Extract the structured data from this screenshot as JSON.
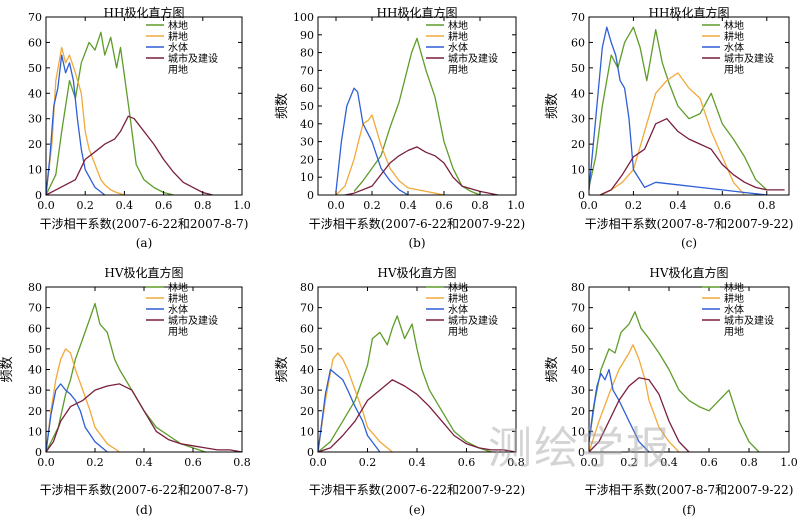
{
  "colors": {
    "forest": "#5e9c2a",
    "farmland": "#f2a93b",
    "water": "#2f5fd6",
    "urban": "#7a1f3d",
    "axis": "#000000"
  },
  "legend_labels": [
    "林地",
    "耕地",
    "水体",
    "城市及建设",
    "用地"
  ],
  "watermark": "测绘学报",
  "chart_data": [
    {
      "type": "line",
      "panel_label": "(a)",
      "title": "HH极化直方图",
      "xlabel": "干涉相干系数(2007-6-22和2007-8-7)",
      "ylabel": "",
      "xlim": [
        0,
        1.0
      ],
      "ylim": [
        0,
        70
      ],
      "xticks": [
        "0.0",
        "0.2",
        "0.4",
        "0.6",
        "0.8",
        "1.0"
      ],
      "yticks": [
        "0",
        "10",
        "20",
        "30",
        "40",
        "50",
        "60",
        "70"
      ],
      "series": [
        {
          "name": "林地",
          "color": "forest",
          "x": [
            0.0,
            0.05,
            0.08,
            0.12,
            0.15,
            0.18,
            0.2,
            0.22,
            0.25,
            0.28,
            0.3,
            0.33,
            0.36,
            0.38,
            0.4,
            0.43,
            0.46,
            0.5,
            0.55,
            0.6,
            0.65
          ],
          "y": [
            0,
            8,
            25,
            45,
            38,
            52,
            56,
            60,
            57,
            64,
            55,
            62,
            50,
            58,
            47,
            30,
            12,
            6,
            3,
            1,
            0
          ]
        },
        {
          "name": "耕地",
          "color": "farmland",
          "x": [
            0.0,
            0.03,
            0.05,
            0.08,
            0.1,
            0.12,
            0.15,
            0.18,
            0.2,
            0.22,
            0.25,
            0.28,
            0.3,
            0.33,
            0.36,
            0.4
          ],
          "y": [
            0,
            20,
            45,
            58,
            52,
            55,
            48,
            40,
            25,
            18,
            12,
            6,
            4,
            2,
            1,
            0
          ]
        },
        {
          "name": "水体",
          "color": "water",
          "x": [
            0.0,
            0.02,
            0.04,
            0.06,
            0.08,
            0.1,
            0.12,
            0.14,
            0.16,
            0.18,
            0.2,
            0.25,
            0.3
          ],
          "y": [
            0,
            15,
            35,
            42,
            55,
            48,
            52,
            45,
            30,
            18,
            10,
            3,
            0
          ]
        },
        {
          "name": "城市及建设用地",
          "color": "urban",
          "x": [
            0.0,
            0.05,
            0.1,
            0.15,
            0.2,
            0.25,
            0.3,
            0.35,
            0.38,
            0.4,
            0.42,
            0.45,
            0.5,
            0.55,
            0.6,
            0.65,
            0.7,
            0.75,
            0.8,
            0.85
          ],
          "y": [
            0,
            2,
            4,
            6,
            14,
            17,
            20,
            22,
            25,
            28,
            31,
            30,
            25,
            20,
            14,
            9,
            5,
            3,
            1,
            0
          ]
        }
      ]
    },
    {
      "type": "line",
      "panel_label": "(b)",
      "title": "HH极化直方图",
      "xlabel": "干涉相干系数(2007-6-22和2007-9-22)",
      "ylabel": "频数",
      "xlim": [
        -0.1,
        1.0
      ],
      "ylim": [
        0,
        100
      ],
      "xticks": [
        "0.0",
        "0.2",
        "0.4",
        "0.6",
        "0.8",
        "1.0"
      ],
      "yticks": [
        "0",
        "10",
        "20",
        "30",
        "40",
        "50",
        "60",
        "70",
        "80",
        "90",
        "100"
      ],
      "series": [
        {
          "name": "林地",
          "color": "forest",
          "x": [
            0.1,
            0.15,
            0.2,
            0.25,
            0.3,
            0.35,
            0.4,
            0.42,
            0.45,
            0.5,
            0.55,
            0.6,
            0.65,
            0.7,
            0.75,
            0.8
          ],
          "y": [
            2,
            8,
            15,
            22,
            38,
            52,
            72,
            80,
            88,
            70,
            55,
            30,
            15,
            5,
            2,
            0
          ]
        },
        {
          "name": "耕地",
          "color": "farmland",
          "x": [
            0.0,
            0.05,
            0.1,
            0.15,
            0.18,
            0.2,
            0.25,
            0.3,
            0.35,
            0.4,
            0.5,
            0.6
          ],
          "y": [
            0,
            5,
            20,
            40,
            42,
            45,
            28,
            15,
            8,
            4,
            2,
            0
          ]
        },
        {
          "name": "水体",
          "color": "water",
          "x": [
            0.0,
            0.03,
            0.06,
            0.1,
            0.12,
            0.15,
            0.2,
            0.25,
            0.3,
            0.35,
            0.4
          ],
          "y": [
            2,
            30,
            50,
            60,
            58,
            40,
            30,
            15,
            8,
            3,
            0
          ]
        },
        {
          "name": "城市及建设用地",
          "color": "urban",
          "x": [
            0.05,
            0.1,
            0.2,
            0.3,
            0.35,
            0.4,
            0.45,
            0.5,
            0.55,
            0.6,
            0.65,
            0.7,
            0.8,
            0.9
          ],
          "y": [
            0,
            1,
            5,
            18,
            22,
            25,
            27,
            24,
            22,
            18,
            10,
            5,
            2,
            0
          ]
        }
      ]
    },
    {
      "type": "line",
      "panel_label": "(c)",
      "title": "HH极化直方图",
      "xlabel": "干涉相干系数(2007-8-7和2007-9-22)",
      "ylabel": "频数",
      "xlim": [
        0,
        0.9
      ],
      "ylim": [
        0,
        70
      ],
      "xticks": [
        "0.0",
        "0.2",
        "0.4",
        "0.6",
        "0.8"
      ],
      "yticks": [
        "0",
        "10",
        "20",
        "30",
        "40",
        "50",
        "60",
        "70"
      ],
      "series": [
        {
          "name": "林地",
          "color": "forest",
          "x": [
            0.0,
            0.03,
            0.06,
            0.1,
            0.13,
            0.16,
            0.2,
            0.23,
            0.26,
            0.3,
            0.33,
            0.36,
            0.4,
            0.45,
            0.5,
            0.55,
            0.6,
            0.65,
            0.7,
            0.75,
            0.8
          ],
          "y": [
            3,
            15,
            35,
            55,
            50,
            60,
            66,
            58,
            45,
            65,
            52,
            44,
            35,
            30,
            32,
            40,
            28,
            22,
            15,
            6,
            2
          ]
        },
        {
          "name": "耕地",
          "color": "farmland",
          "x": [
            0.05,
            0.1,
            0.15,
            0.2,
            0.25,
            0.3,
            0.35,
            0.4,
            0.45,
            0.5,
            0.55,
            0.6,
            0.65,
            0.7
          ],
          "y": [
            0,
            2,
            5,
            10,
            25,
            40,
            45,
            48,
            42,
            38,
            25,
            15,
            5,
            0
          ]
        },
        {
          "name": "水体",
          "color": "water",
          "x": [
            0.0,
            0.03,
            0.06,
            0.08,
            0.1,
            0.12,
            0.14,
            0.16,
            0.18,
            0.2,
            0.25,
            0.3,
            0.4,
            0.5,
            0.6,
            0.7,
            0.8
          ],
          "y": [
            2,
            30,
            58,
            66,
            60,
            55,
            45,
            42,
            30,
            10,
            3,
            5,
            4,
            3,
            2,
            1,
            0
          ]
        },
        {
          "name": "城市及建设用地",
          "color": "urban",
          "x": [
            0.05,
            0.1,
            0.15,
            0.2,
            0.25,
            0.3,
            0.35,
            0.4,
            0.45,
            0.5,
            0.55,
            0.6,
            0.65,
            0.7,
            0.75,
            0.8,
            0.85,
            0.88
          ],
          "y": [
            0,
            2,
            8,
            15,
            18,
            28,
            30,
            25,
            22,
            20,
            18,
            12,
            8,
            5,
            3,
            2,
            2,
            2
          ]
        }
      ]
    },
    {
      "type": "line",
      "panel_label": "(d)",
      "title": "HV极化直方图",
      "xlabel": "干涉相干系数(2007-6-22和2007-8-7)",
      "ylabel": "频数",
      "xlim": [
        0,
        0.8
      ],
      "ylim": [
        0,
        80
      ],
      "xticks": [
        "0.0",
        "0.2",
        "0.4",
        "0.6",
        "0.8"
      ],
      "yticks": [
        "0",
        "10",
        "20",
        "30",
        "40",
        "50",
        "60",
        "70",
        "80"
      ],
      "series": [
        {
          "name": "林地",
          "color": "forest",
          "x": [
            0.0,
            0.05,
            0.08,
            0.1,
            0.12,
            0.15,
            0.18,
            0.2,
            0.22,
            0.25,
            0.28,
            0.3,
            0.35,
            0.4,
            0.45,
            0.5,
            0.55,
            0.6,
            0.65
          ],
          "y": [
            0,
            12,
            28,
            35,
            45,
            55,
            65,
            72,
            62,
            58,
            45,
            40,
            30,
            20,
            12,
            8,
            4,
            2,
            0
          ]
        },
        {
          "name": "耕地",
          "color": "farmland",
          "x": [
            0.0,
            0.02,
            0.04,
            0.06,
            0.08,
            0.1,
            0.12,
            0.15,
            0.18,
            0.2,
            0.25,
            0.3
          ],
          "y": [
            0,
            20,
            35,
            45,
            50,
            48,
            40,
            30,
            20,
            12,
            4,
            0
          ]
        },
        {
          "name": "水体",
          "color": "water",
          "x": [
            0.0,
            0.02,
            0.04,
            0.06,
            0.08,
            0.1,
            0.12,
            0.14,
            0.16,
            0.2,
            0.25
          ],
          "y": [
            0,
            18,
            30,
            33,
            30,
            28,
            25,
            20,
            12,
            5,
            0
          ]
        },
        {
          "name": "城市及建设用地",
          "color": "urban",
          "x": [
            0.0,
            0.03,
            0.06,
            0.1,
            0.15,
            0.2,
            0.25,
            0.3,
            0.35,
            0.4,
            0.45,
            0.5,
            0.55,
            0.6,
            0.65,
            0.7,
            0.75,
            0.8
          ],
          "y": [
            0,
            5,
            15,
            22,
            25,
            30,
            32,
            33,
            30,
            20,
            10,
            6,
            4,
            3,
            2,
            1,
            1,
            0
          ]
        }
      ]
    },
    {
      "type": "line",
      "panel_label": "(e)",
      "title": "HV极化直方图",
      "xlabel": "干涉相干系数(2007-6-22和2007-9-22)",
      "ylabel": "频数",
      "xlim": [
        0,
        0.8
      ],
      "ylim": [
        0,
        80
      ],
      "xticks": [
        "0.0",
        "0.2",
        "0.4",
        "0.6",
        "0.8"
      ],
      "yticks": [
        "0",
        "10",
        "20",
        "30",
        "40",
        "50",
        "60",
        "70",
        "80"
      ],
      "series": [
        {
          "name": "林地",
          "color": "forest",
          "x": [
            0.0,
            0.05,
            0.1,
            0.15,
            0.2,
            0.22,
            0.25,
            0.28,
            0.3,
            0.32,
            0.35,
            0.38,
            0.4,
            0.42,
            0.45,
            0.5,
            0.55,
            0.6,
            0.65,
            0.7
          ],
          "y": [
            0,
            5,
            15,
            25,
            42,
            55,
            58,
            52,
            60,
            66,
            55,
            62,
            50,
            40,
            30,
            20,
            10,
            5,
            2,
            0
          ]
        },
        {
          "name": "耕地",
          "color": "farmland",
          "x": [
            0.0,
            0.03,
            0.06,
            0.08,
            0.1,
            0.12,
            0.15,
            0.18,
            0.2,
            0.25,
            0.3
          ],
          "y": [
            0,
            25,
            45,
            48,
            45,
            40,
            30,
            20,
            12,
            5,
            0
          ]
        },
        {
          "name": "水体",
          "color": "water",
          "x": [
            0.0,
            0.03,
            0.05,
            0.07,
            0.1,
            0.12,
            0.15,
            0.18,
            0.2,
            0.25
          ],
          "y": [
            0,
            28,
            40,
            38,
            35,
            30,
            22,
            15,
            8,
            0
          ]
        },
        {
          "name": "城市及建设用地",
          "color": "urban",
          "x": [
            0.0,
            0.05,
            0.1,
            0.15,
            0.2,
            0.25,
            0.3,
            0.35,
            0.4,
            0.45,
            0.5,
            0.55,
            0.6,
            0.65,
            0.7,
            0.75,
            0.8
          ],
          "y": [
            0,
            2,
            8,
            15,
            25,
            30,
            35,
            32,
            28,
            22,
            15,
            8,
            4,
            2,
            1,
            1,
            0
          ]
        }
      ]
    },
    {
      "type": "line",
      "panel_label": "(f)",
      "title": "HV极化直方图",
      "xlabel": "干涉相干系数(2007-8-7和2007-9-22)",
      "ylabel": "频数",
      "xlim": [
        0,
        1.0
      ],
      "ylim": [
        0,
        80
      ],
      "xticks": [
        "0.0",
        "0.2",
        "0.4",
        "0.6",
        "0.8",
        "1.0"
      ],
      "yticks": [
        "0",
        "10",
        "20",
        "30",
        "40",
        "50",
        "60",
        "70",
        "80"
      ],
      "series": [
        {
          "name": "林地",
          "color": "forest",
          "x": [
            0.0,
            0.03,
            0.06,
            0.1,
            0.13,
            0.16,
            0.2,
            0.23,
            0.26,
            0.3,
            0.35,
            0.4,
            0.45,
            0.5,
            0.55,
            0.6,
            0.65,
            0.7,
            0.75,
            0.8,
            0.85
          ],
          "y": [
            5,
            25,
            40,
            50,
            48,
            58,
            62,
            68,
            60,
            55,
            48,
            40,
            30,
            25,
            22,
            20,
            25,
            30,
            15,
            5,
            0
          ]
        },
        {
          "name": "耕地",
          "color": "farmland",
          "x": [
            0.0,
            0.05,
            0.1,
            0.15,
            0.2,
            0.22,
            0.25,
            0.28,
            0.3,
            0.35,
            0.4,
            0.45
          ],
          "y": [
            0,
            15,
            28,
            40,
            48,
            52,
            45,
            35,
            25,
            12,
            5,
            0
          ]
        },
        {
          "name": "水体",
          "color": "water",
          "x": [
            0.0,
            0.02,
            0.04,
            0.06,
            0.08,
            0.1,
            0.12,
            0.15,
            0.2,
            0.25,
            0.3
          ],
          "y": [
            5,
            20,
            32,
            38,
            35,
            40,
            30,
            25,
            15,
            5,
            0
          ]
        },
        {
          "name": "城市及建设用地",
          "color": "urban",
          "x": [
            0.0,
            0.05,
            0.1,
            0.15,
            0.2,
            0.25,
            0.3,
            0.35,
            0.4,
            0.45,
            0.5
          ],
          "y": [
            0,
            5,
            15,
            25,
            32,
            36,
            35,
            28,
            15,
            5,
            0
          ]
        }
      ]
    }
  ]
}
